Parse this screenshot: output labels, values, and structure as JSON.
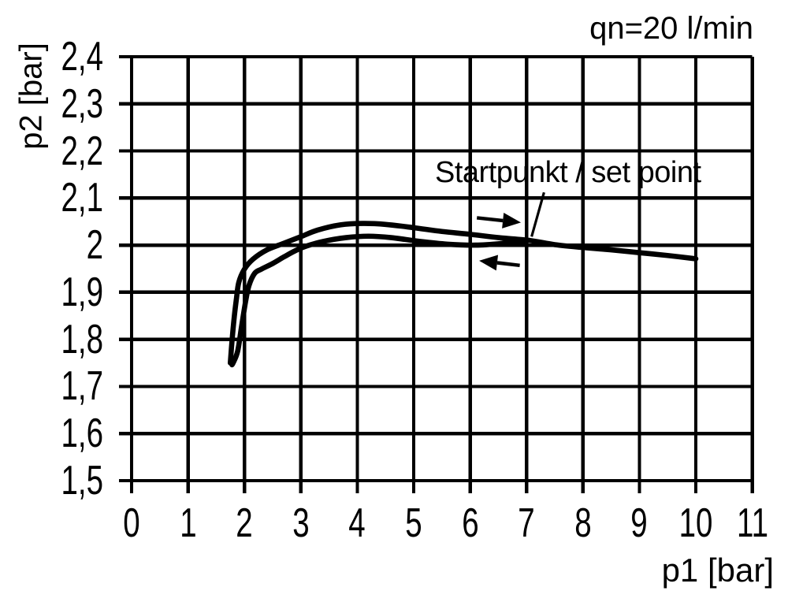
{
  "chart_data": {
    "type": "line",
    "title": "qn=20 l/min",
    "xlabel": "p1 [bar]",
    "ylabel": "p2 [bar]",
    "xlim": [
      0,
      11
    ],
    "ylim": [
      1.5,
      2.4
    ],
    "grid": true,
    "axis_color": "#000000",
    "line_color": "#000000",
    "background": "#ffffff",
    "x_ticks": {
      "values": [
        0,
        1,
        2,
        3,
        4,
        5,
        6,
        7,
        8,
        9,
        10,
        11
      ],
      "labels": [
        "0",
        "1",
        "2",
        "3",
        "4",
        "5",
        "6",
        "7",
        "8",
        "9",
        "10",
        "11"
      ]
    },
    "y_ticks": {
      "values": [
        2.4,
        2.3,
        2.2,
        2.1,
        2.0,
        1.9,
        1.8,
        1.7,
        1.6,
        1.5
      ],
      "labels": [
        "2,4",
        "2,3",
        "2,2",
        "2,1",
        "2",
        "1,9",
        "1,8",
        "1,7",
        "1,6",
        "1,5"
      ]
    },
    "series": [
      {
        "direction": "p1 increasing",
        "points": [
          [
            1.75,
            1.75
          ],
          [
            1.78,
            1.797
          ],
          [
            1.82,
            1.848
          ],
          [
            1.86,
            1.888
          ],
          [
            1.9,
            1.921
          ],
          [
            2.0,
            1.949
          ],
          [
            2.15,
            1.97
          ],
          [
            2.4,
            1.99
          ],
          [
            2.7,
            2.004
          ],
          [
            3.0,
            2.018
          ],
          [
            3.3,
            2.032
          ],
          [
            3.7,
            2.043
          ],
          [
            4.1,
            2.046
          ],
          [
            4.5,
            2.044
          ],
          [
            5.0,
            2.037
          ],
          [
            5.5,
            2.029
          ],
          [
            6.0,
            2.023
          ],
          [
            6.5,
            2.016
          ],
          [
            7.05,
            2.01
          ],
          [
            7.5,
            2.001
          ],
          [
            8.0,
            1.995
          ],
          [
            8.5,
            1.99
          ],
          [
            9.0,
            1.984
          ],
          [
            9.5,
            1.978
          ],
          [
            10.0,
            1.971
          ]
        ]
      },
      {
        "direction": "p1 decreasing",
        "points": [
          [
            7.05,
            2.01
          ],
          [
            6.6,
            2.004
          ],
          [
            6.1,
            2.0
          ],
          [
            5.6,
            2.002
          ],
          [
            5.1,
            2.008
          ],
          [
            4.6,
            2.016
          ],
          [
            4.2,
            2.019
          ],
          [
            3.8,
            2.016
          ],
          [
            3.4,
            2.008
          ],
          [
            3.1,
            1.998
          ],
          [
            2.9,
            1.988
          ],
          [
            2.7,
            1.975
          ],
          [
            2.5,
            1.961
          ],
          [
            2.3,
            1.949
          ],
          [
            2.18,
            1.94
          ],
          [
            2.08,
            1.914
          ],
          [
            2.02,
            1.88
          ],
          [
            1.95,
            1.828
          ],
          [
            1.88,
            1.775
          ],
          [
            1.8,
            1.75
          ],
          [
            1.78,
            1.746
          ]
        ]
      }
    ],
    "annotations": {
      "set_point_label": "Startpunkt / set point",
      "leader_line": {
        "from": [
          7.31,
          2.112
        ],
        "to": [
          7.09,
          2.018
        ]
      },
      "arrows": [
        {
          "direction": "right",
          "from": [
            6.12,
            2.058
          ],
          "to": [
            6.9,
            2.048
          ]
        },
        {
          "direction": "left",
          "from": [
            6.88,
            1.957
          ],
          "to": [
            6.16,
            1.967
          ]
        }
      ]
    }
  }
}
